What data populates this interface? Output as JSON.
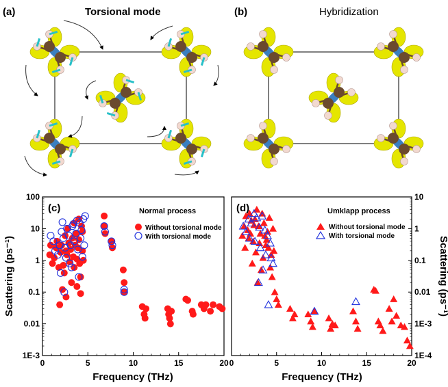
{
  "panels": {
    "a": {
      "label": "(a)",
      "title": "Torsional mode"
    },
    "b": {
      "label": "(b)",
      "title": "Hybridization"
    }
  },
  "colors": {
    "carbon": "#6b4a2e",
    "hydrogen": "#f2d9d0",
    "lobe": "#e5e600",
    "bond": "#3a7fc0",
    "arrow": "#28c0c8",
    "series_without": "#ff1a1a",
    "series_with": "#2233dd"
  },
  "chart_data": [
    {
      "type": "scatter",
      "panel_label": "(c)",
      "annotation": "Normal process",
      "xlabel": "Frequency (THz)",
      "ylabel": "Scattering (ps⁻¹)",
      "xlim": [
        0,
        20
      ],
      "ylim": [
        0.001,
        100
      ],
      "yscale": "log",
      "x_ticks": [
        "0",
        "5",
        "10",
        "15",
        "20"
      ],
      "y_ticks": [
        "1E-3",
        "0.01",
        "0.1",
        "1",
        "10",
        "100"
      ],
      "legend": {
        "placement": "top-right"
      },
      "series": [
        {
          "name": "Without torsional mode",
          "marker": "filled-circle",
          "x": [
            0.8,
            0.9,
            1.1,
            1.3,
            1.5,
            1.6,
            1.8,
            2.0,
            2.1,
            2.3,
            2.4,
            2.5,
            2.6,
            2.7,
            2.9,
            3.0,
            3.1,
            3.3,
            3.4,
            3.5,
            3.6,
            3.7,
            3.8,
            3.9,
            4.0,
            4.1,
            4.2,
            4.3,
            4.4,
            4.5,
            1.9,
            2.2,
            2.6,
            3.2,
            3.8,
            4.2,
            2.8,
            3.5,
            4.0,
            4.4,
            6.8,
            6.8,
            6.9,
            7.6,
            7.7,
            8.9,
            9.0,
            9.0,
            11.0,
            11.2,
            11.3,
            11.4,
            13.8,
            13.9,
            14.0,
            14.1,
            14.2,
            15.8,
            16.0,
            16.5,
            16.6,
            17.5,
            17.8,
            18.0,
            18.5,
            18.8,
            19.5,
            19.8
          ],
          "y": [
            1.5,
            3,
            0.8,
            1.2,
            2.5,
            4,
            0.6,
            1.8,
            3,
            0.7,
            0.4,
            6,
            2,
            1.5,
            3.5,
            0.9,
            2.2,
            5,
            1.3,
            0.6,
            3,
            7,
            1.1,
            2.5,
            4.5,
            0.8,
            0.3,
            12,
            2,
            1,
            0.04,
            0.12,
            0.07,
            0.2,
            0.15,
            0.09,
            10,
            15,
            20,
            8,
            25,
            12,
            7,
            4,
            2.5,
            0.5,
            0.2,
            0.1,
            0.035,
            0.02,
            0.015,
            0.03,
            0.03,
            0.02,
            0.015,
            0.01,
            0.025,
            0.06,
            0.055,
            0.025,
            0.02,
            0.04,
            0.03,
            0.04,
            0.025,
            0.04,
            0.035,
            0.03
          ]
        },
        {
          "name": "With torsional mode",
          "marker": "open-circle",
          "x": [
            0.9,
            1.2,
            1.4,
            1.7,
            1.9,
            2.1,
            2.3,
            2.5,
            2.7,
            2.9,
            3.1,
            3.3,
            3.5,
            3.7,
            3.9,
            4.1,
            4.3,
            4.5,
            4.7,
            2.2,
            2.6,
            3.0,
            3.4,
            3.8,
            4.2,
            2.4,
            3.2,
            4.0,
            4.6,
            2.0,
            4.4,
            6.8,
            6.9,
            7.6,
            7.7,
            9.0,
            9.0
          ],
          "y": [
            6,
            4,
            2,
            1.5,
            3,
            8,
            5,
            2.5,
            10,
            6,
            3,
            12,
            4,
            7,
            2.2,
            15,
            9,
            20,
            25,
            16,
            1.2,
            0.8,
            14,
            18,
            5,
            0.1,
            0.6,
            0.3,
            3,
            0.4,
            1.3,
            12,
            8,
            4,
            3,
            0.12,
            0.1
          ]
        }
      ]
    },
    {
      "type": "scatter",
      "panel_label": "(d)",
      "annotation": "Umklapp process",
      "xlabel": "Frequency (THz)",
      "ylabel": "Scattering (ps⁻¹)",
      "xlim": [
        0,
        20
      ],
      "ylim": [
        0.0001,
        10
      ],
      "yscale": "log",
      "yaxis_side": "right",
      "x_ticks": [
        "0",
        "5",
        "10",
        "15",
        "20"
      ],
      "y_ticks": [
        "1E-4",
        "1E-3",
        "0.01",
        "0.1",
        "1",
        "10"
      ],
      "legend": {
        "placement": "top-right"
      },
      "series": [
        {
          "name": "Without torsional mode",
          "marker": "filled-triangle",
          "x": [
            1.2,
            1.4,
            1.6,
            1.8,
            2.0,
            2.2,
            2.4,
            2.6,
            2.8,
            3.0,
            3.2,
            3.4,
            3.6,
            3.8,
            4.0,
            4.2,
            4.4,
            4.6,
            1.5,
            1.9,
            2.3,
            2.7,
            3.1,
            3.5,
            3.9,
            4.3,
            4.7,
            2.1,
            2.5,
            2.9,
            3.3,
            3.7,
            4.1,
            4.5,
            4.8,
            5.0,
            5.2,
            6.5,
            6.8,
            7.0,
            8.5,
            8.8,
            9.0,
            9.2,
            10.8,
            11.0,
            11.2,
            11.5,
            13.5,
            13.8,
            14.0,
            15.8,
            16.0,
            16.3,
            17.5,
            17.8,
            18.0,
            18.3,
            18.8,
            19.2,
            19.5,
            19.8,
            16.8,
            16.5
          ],
          "y": [
            0.6,
            1.2,
            2.5,
            0.9,
            3,
            1.8,
            0.4,
            2,
            4,
            1.2,
            0.7,
            3,
            1.5,
            0.3,
            0.8,
            2.2,
            0.15,
            1.0,
            0.25,
            0.5,
            0.08,
            0.18,
            0.35,
            0.12,
            0.45,
            0.06,
            0.2,
            0.7,
            1.3,
            0.02,
            0.05,
            0.6,
            0.25,
            0.03,
            0.01,
            0.006,
            0.004,
            0.003,
            0.0015,
            0.002,
            0.002,
            0.0012,
            0.0008,
            0.0025,
            0.0015,
            0.0007,
            0.001,
            0.0009,
            0.0025,
            0.0012,
            0.0007,
            0.012,
            0.011,
            0.0012,
            0.003,
            0.0012,
            0.006,
            0.0018,
            0.0009,
            0.0008,
            0.0003,
            0.0002,
            0.0006,
            0.0009
          ]
        },
        {
          "name": "With torsional mode",
          "marker": "open-triangle",
          "x": [
            1.3,
            1.6,
            1.9,
            2.2,
            2.5,
            2.8,
            3.1,
            3.4,
            3.7,
            4.0,
            4.3,
            2.0,
            2.6,
            3.2,
            3.8,
            4.4,
            4.6,
            3.0,
            3.5,
            4.1,
            9.2,
            13.8
          ],
          "y": [
            1.2,
            0.8,
            2,
            1.5,
            3,
            2.2,
            1.1,
            2.5,
            0.9,
            0.6,
            0.35,
            0.5,
            0.4,
            0.25,
            0.15,
            0.12,
            0.08,
            0.02,
            0.05,
            0.004,
            0.0025,
            0.005
          ]
        }
      ]
    }
  ]
}
